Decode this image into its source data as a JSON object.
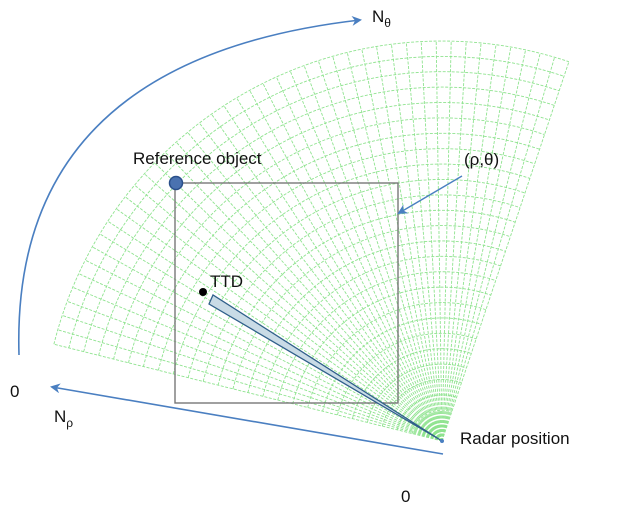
{
  "labels": {
    "n_theta_main": "N",
    "n_theta_sub": "θ",
    "n_rho_main": "N",
    "n_rho_sub": "ρ",
    "zero_left": "0",
    "zero_bottom": "0",
    "reference_object": "Reference object",
    "cell_coordinate": "(ρ,θ)",
    "ttd": "TTD",
    "radar_position": "Radar position"
  },
  "colors": {
    "grid": "#8fe38f",
    "arrow": "#4a7fc1",
    "reference_marker": "#4a72b0",
    "beam_fill": "#c9dbe6",
    "beam_stroke": "#2f5f8a",
    "box": "#777777",
    "text": "#111111"
  },
  "grid": {
    "range_bins": 26,
    "angle_bins": 44
  }
}
